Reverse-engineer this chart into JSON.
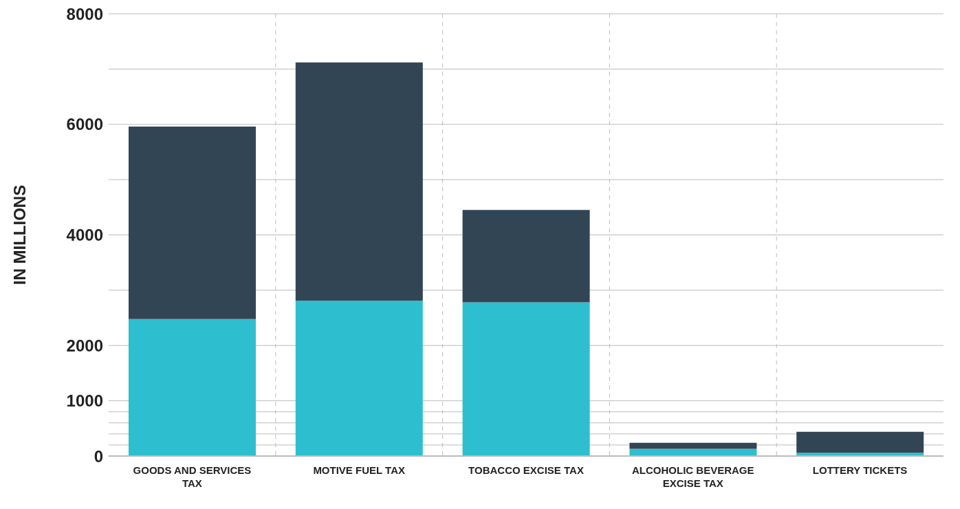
{
  "chart_data": {
    "type": "bar",
    "stacked": true,
    "ylabel": "IN MILLIONS",
    "categories": [
      "GOODS AND SERVICES TAX",
      "MOTIVE FUEL TAX",
      "TOBACCO EXCISE TAX",
      "ALCOHOLIC BEVERAGE EXCISE TAX",
      "LOTTERY TICKETS"
    ],
    "series": [
      {
        "color": "#2dbfcf",
        "values": [
          2480,
          2810,
          2780,
          130,
          60
        ]
      },
      {
        "color": "#324555",
        "values": [
          3480,
          4310,
          1670,
          110,
          380
        ]
      }
    ],
    "ylim": [
      0,
      8000
    ],
    "yticks": [
      0,
      {
        "value": 200,
        "label": null
      },
      {
        "value": 400,
        "label": null
      },
      {
        "value": 600,
        "label": null
      },
      {
        "value": 800,
        "label": null
      },
      1000,
      2000,
      {
        "value": 3000,
        "label": null
      },
      4000,
      {
        "value": 5000,
        "label": null
      },
      6000,
      {
        "value": 7000,
        "label": null
      },
      8000
    ],
    "grid": true
  }
}
